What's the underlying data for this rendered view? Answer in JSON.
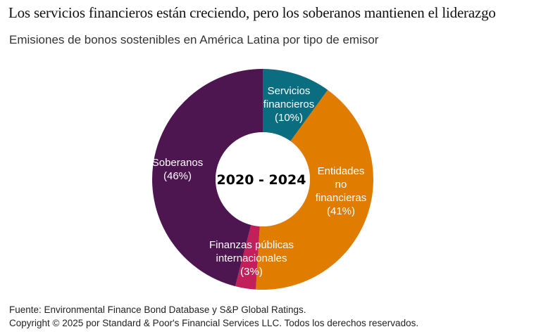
{
  "chart_data": {
    "type": "pie",
    "donut": true,
    "title": "Los servicios financieros están creciendo, pero los soberanos mantienen el liderazgo",
    "subtitle": "Emisiones de bonos sostenibles en América Latina por tipo de emisor",
    "center_label": "2020 - 2024",
    "slices": [
      {
        "name": "Servicios financieros",
        "label_lines": [
          "Servicios",
          "financieros",
          "(10%)"
        ],
        "value": 10,
        "color": "#0b6d80"
      },
      {
        "name": "Entidades no financieras",
        "label_lines": [
          "Entidades",
          "no",
          "financieras",
          "(41%)"
        ],
        "value": 41,
        "color": "#e07c00"
      },
      {
        "name": "Finanzas públicas internacionales",
        "label_lines": [
          "Finanzas públicas",
          "internacionales",
          "(3%)"
        ],
        "value": 3,
        "color": "#c2205a"
      },
      {
        "name": "Soberanos",
        "label_lines": [
          "Soberanos",
          "(46%)"
        ],
        "value": 46,
        "color": "#4e1650"
      }
    ],
    "legend": "none"
  },
  "footer": {
    "source": "Fuente: Environmental Finance Bond Database y S&P Global Ratings.",
    "copyright": "Copyright © 2025 por Standard & Poor's Financial Services LLC. Todos los derechos reservados."
  }
}
